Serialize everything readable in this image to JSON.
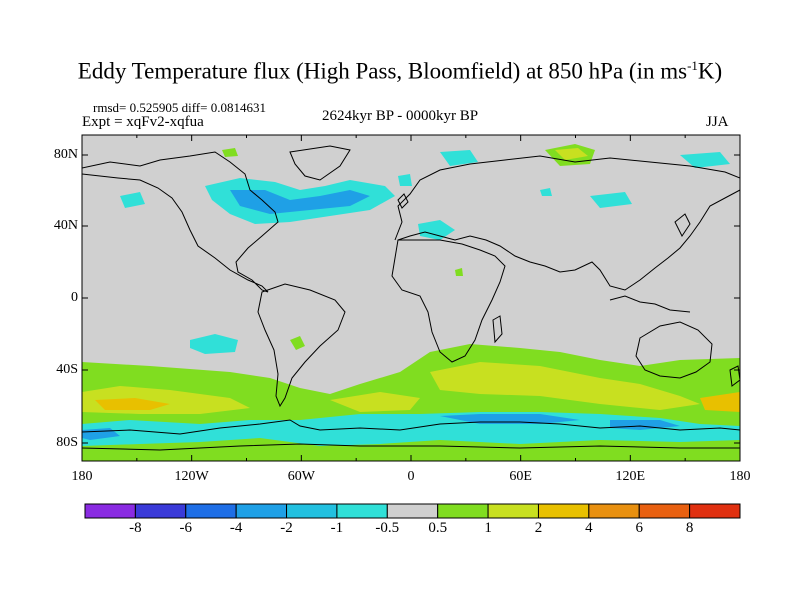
{
  "title": {
    "main": "Eddy Temperature flux (High Pass, Bloomfield) at 850 hPa (in ms",
    "sup": "-1",
    "end": "K)"
  },
  "stats": "rmsd= 0.525905 diff= 0.0814631",
  "expt": "Expt = xqFv2-xqfua",
  "period": "2624kyr BP - 0000kyr BP",
  "season": "JJA",
  "lat_labels": [
    "80N",
    "40N",
    "0",
    "40S",
    "80S"
  ],
  "lon_labels": [
    "180",
    "120W",
    "60W",
    "0",
    "60E",
    "120E",
    "180"
  ],
  "colorbar": {
    "labels": [
      "-8",
      "-6",
      "-4",
      "-2",
      "-1",
      "-0.5",
      "0.5",
      "1",
      "2",
      "4",
      "6",
      "8"
    ],
    "colors": [
      "#8a2be2",
      "#3a3ad8",
      "#1e6ee6",
      "#1fa0e6",
      "#22c0e0",
      "#30e0d8",
      "#d0d0d0",
      "#80dd20",
      "#c8e020",
      "#e8c000",
      "#e89010",
      "#e86010",
      "#e03010"
    ]
  },
  "colors": {
    "ocean_neutral": "#d0d0d0",
    "coast": "#000000"
  }
}
